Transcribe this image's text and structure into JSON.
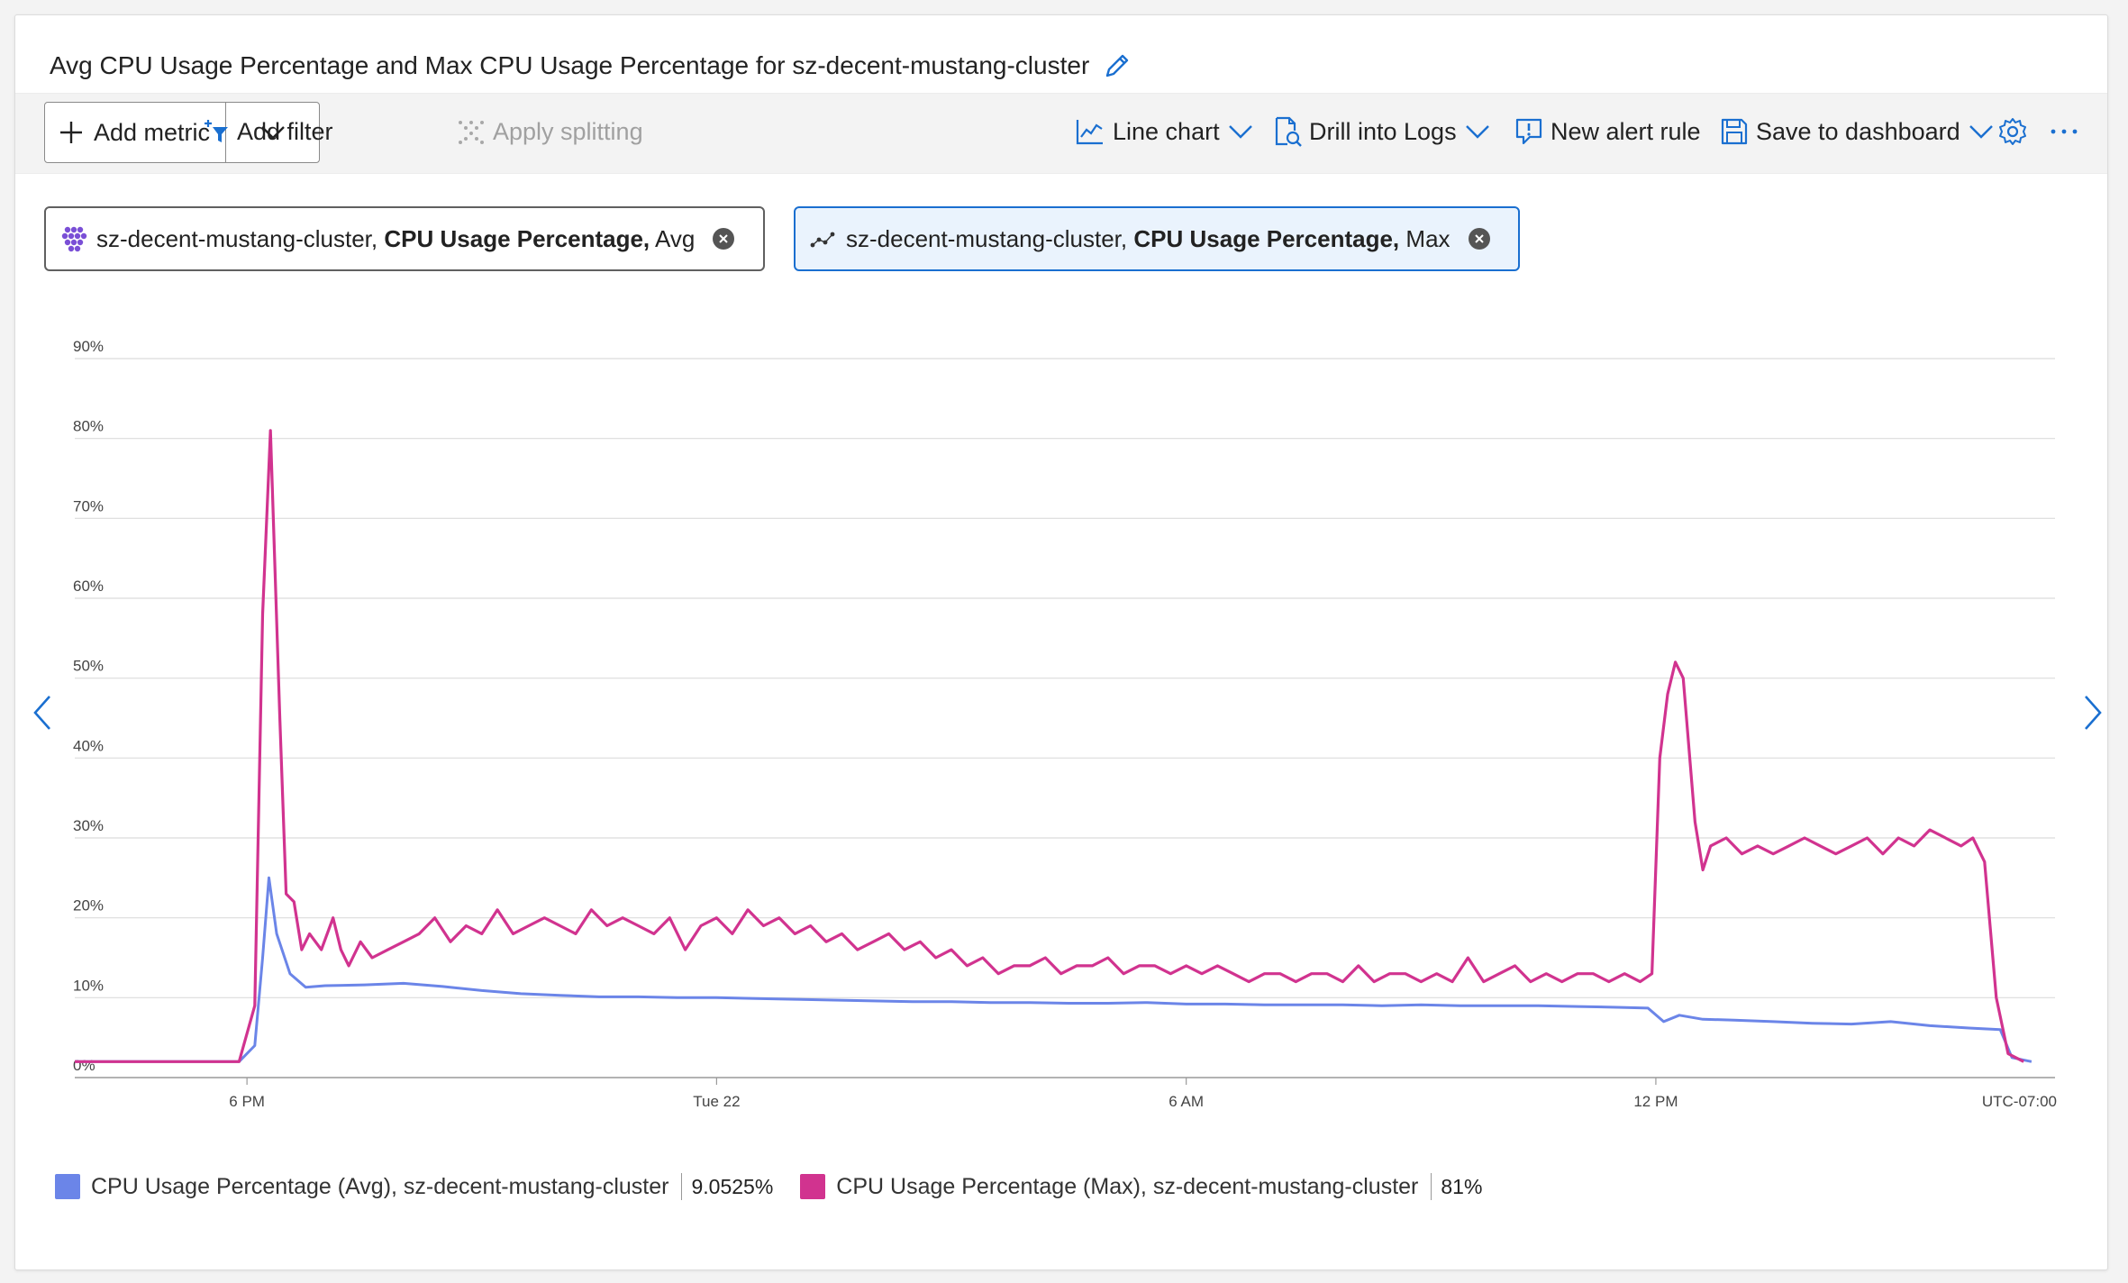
{
  "title": "Avg CPU Usage Percentage and Max CPU Usage Percentage for sz-decent-mustang-cluster",
  "icons": {
    "edit": "pencil-icon",
    "add": "plus-icon",
    "filter": "filter-plus-icon",
    "splitting": "splitting-icon",
    "line_chart": "line-chart-icon",
    "logs": "logs-icon",
    "alert": "alert-icon",
    "save": "save-icon",
    "settings": "gear-icon",
    "more": "ellipsis-icon"
  },
  "toolbar": {
    "add_metric": "Add metric",
    "add_filter": "Add filter",
    "apply_splitting": "Apply splitting",
    "line_chart": "Line chart",
    "drill_into_logs": "Drill into Logs",
    "new_alert_rule": "New alert rule",
    "save_to_dashboard": "Save to dashboard"
  },
  "metric_pills": [
    {
      "resource": "sz-decent-mustang-cluster,",
      "metric": "CPU Usage Percentage,",
      "aggregation": "Avg"
    },
    {
      "resource": "sz-decent-mustang-cluster,",
      "metric": "CPU Usage Percentage,",
      "aggregation": "Max"
    }
  ],
  "legend": [
    {
      "label": "CPU Usage Percentage (Avg), sz-decent-mustang-cluster",
      "value": "9.0525%",
      "color": "#6b85e8"
    },
    {
      "label": "CPU Usage Percentage (Max), sz-decent-mustang-cluster",
      "value": "81%",
      "color": "#d1338f"
    }
  ],
  "chart_data": {
    "type": "line",
    "timezone_label": "UTC-07:00",
    "x_ticks": [
      {
        "label": "6 PM",
        "hour": 18
      },
      {
        "label": "Tue 22",
        "hour": 24
      },
      {
        "label": "6 AM",
        "hour": 30
      },
      {
        "label": "12 PM",
        "hour": 36
      }
    ],
    "xlim_hours": [
      15.8,
      41.1
    ],
    "y_ticks": [
      "0%",
      "10%",
      "20%",
      "30%",
      "40%",
      "50%",
      "60%",
      "70%",
      "80%",
      "90%"
    ],
    "ylim": [
      0,
      90
    ],
    "grid": true,
    "series": [
      {
        "name": "CPU Usage Percentage (Avg), sz-decent-mustang-cluster",
        "color": "#6b85e8",
        "points": [
          [
            15.8,
            2
          ],
          [
            16.5,
            2
          ],
          [
            17.0,
            2
          ],
          [
            17.5,
            2
          ],
          [
            17.9,
            2
          ],
          [
            18.1,
            4
          ],
          [
            18.2,
            15
          ],
          [
            18.28,
            25
          ],
          [
            18.38,
            18
          ],
          [
            18.55,
            13
          ],
          [
            18.75,
            11.3
          ],
          [
            19.0,
            11.5
          ],
          [
            19.5,
            11.6
          ],
          [
            20.0,
            11.8
          ],
          [
            20.5,
            11.4
          ],
          [
            21.0,
            10.9
          ],
          [
            21.5,
            10.5
          ],
          [
            22.0,
            10.3
          ],
          [
            22.5,
            10.1
          ],
          [
            23.0,
            10.1
          ],
          [
            23.5,
            10.0
          ],
          [
            24.0,
            10.0
          ],
          [
            24.5,
            9.9
          ],
          [
            25.0,
            9.8
          ],
          [
            25.5,
            9.7
          ],
          [
            26.0,
            9.6
          ],
          [
            26.5,
            9.5
          ],
          [
            27.0,
            9.5
          ],
          [
            27.5,
            9.4
          ],
          [
            28.0,
            9.4
          ],
          [
            28.5,
            9.3
          ],
          [
            29.0,
            9.3
          ],
          [
            29.5,
            9.4
          ],
          [
            30.0,
            9.2
          ],
          [
            30.5,
            9.2
          ],
          [
            31.0,
            9.1
          ],
          [
            31.5,
            9.1
          ],
          [
            32.0,
            9.1
          ],
          [
            32.5,
            9.0
          ],
          [
            33.0,
            9.1
          ],
          [
            33.5,
            9.0
          ],
          [
            34.0,
            9.0
          ],
          [
            34.5,
            9.0
          ],
          [
            35.0,
            8.9
          ],
          [
            35.5,
            8.8
          ],
          [
            35.9,
            8.7
          ],
          [
            36.1,
            7.0
          ],
          [
            36.3,
            7.8
          ],
          [
            36.6,
            7.3
          ],
          [
            37.0,
            7.2
          ],
          [
            37.5,
            7.0
          ],
          [
            38.0,
            6.8
          ],
          [
            38.5,
            6.7
          ],
          [
            39.0,
            7.0
          ],
          [
            39.5,
            6.5
          ],
          [
            40.0,
            6.2
          ],
          [
            40.4,
            6.0
          ],
          [
            40.55,
            2.5
          ],
          [
            40.8,
            2
          ]
        ]
      },
      {
        "name": "CPU Usage Percentage (Max), sz-decent-mustang-cluster",
        "color": "#d1338f",
        "points": [
          [
            15.8,
            2
          ],
          [
            16.5,
            2
          ],
          [
            17.0,
            2
          ],
          [
            17.5,
            2
          ],
          [
            17.9,
            2
          ],
          [
            18.1,
            9
          ],
          [
            18.2,
            58
          ],
          [
            18.3,
            81
          ],
          [
            18.42,
            45
          ],
          [
            18.5,
            23
          ],
          [
            18.6,
            22
          ],
          [
            18.7,
            16
          ],
          [
            18.8,
            18
          ],
          [
            18.95,
            16
          ],
          [
            19.1,
            20
          ],
          [
            19.2,
            16
          ],
          [
            19.3,
            14
          ],
          [
            19.45,
            17
          ],
          [
            19.6,
            15
          ],
          [
            19.8,
            16
          ],
          [
            20.0,
            17
          ],
          [
            20.2,
            18
          ],
          [
            20.4,
            20
          ],
          [
            20.6,
            17
          ],
          [
            20.8,
            19
          ],
          [
            21.0,
            18
          ],
          [
            21.2,
            21
          ],
          [
            21.4,
            18
          ],
          [
            21.6,
            19
          ],
          [
            21.8,
            20
          ],
          [
            22.0,
            19
          ],
          [
            22.2,
            18
          ],
          [
            22.4,
            21
          ],
          [
            22.6,
            19
          ],
          [
            22.8,
            20
          ],
          [
            23.0,
            19
          ],
          [
            23.2,
            18
          ],
          [
            23.4,
            20
          ],
          [
            23.6,
            16
          ],
          [
            23.8,
            19
          ],
          [
            24.0,
            20
          ],
          [
            24.2,
            18
          ],
          [
            24.4,
            21
          ],
          [
            24.6,
            19
          ],
          [
            24.8,
            20
          ],
          [
            25.0,
            18
          ],
          [
            25.2,
            19
          ],
          [
            25.4,
            17
          ],
          [
            25.6,
            18
          ],
          [
            25.8,
            16
          ],
          [
            26.0,
            17
          ],
          [
            26.2,
            18
          ],
          [
            26.4,
            16
          ],
          [
            26.6,
            17
          ],
          [
            26.8,
            15
          ],
          [
            27.0,
            16
          ],
          [
            27.2,
            14
          ],
          [
            27.4,
            15
          ],
          [
            27.6,
            13
          ],
          [
            27.8,
            14
          ],
          [
            28.0,
            14
          ],
          [
            28.2,
            15
          ],
          [
            28.4,
            13
          ],
          [
            28.6,
            14
          ],
          [
            28.8,
            14
          ],
          [
            29.0,
            15
          ],
          [
            29.2,
            13
          ],
          [
            29.4,
            14
          ],
          [
            29.6,
            14
          ],
          [
            29.8,
            13
          ],
          [
            30.0,
            14
          ],
          [
            30.2,
            13
          ],
          [
            30.4,
            14
          ],
          [
            30.6,
            13
          ],
          [
            30.8,
            12
          ],
          [
            31.0,
            13
          ],
          [
            31.2,
            13
          ],
          [
            31.4,
            12
          ],
          [
            31.6,
            13
          ],
          [
            31.8,
            13
          ],
          [
            32.0,
            12
          ],
          [
            32.2,
            14
          ],
          [
            32.4,
            12
          ],
          [
            32.6,
            13
          ],
          [
            32.8,
            13
          ],
          [
            33.0,
            12
          ],
          [
            33.2,
            13
          ],
          [
            33.4,
            12
          ],
          [
            33.6,
            15
          ],
          [
            33.8,
            12
          ],
          [
            34.0,
            13
          ],
          [
            34.2,
            14
          ],
          [
            34.4,
            12
          ],
          [
            34.6,
            13
          ],
          [
            34.8,
            12
          ],
          [
            35.0,
            13
          ],
          [
            35.2,
            13
          ],
          [
            35.4,
            12
          ],
          [
            35.6,
            13
          ],
          [
            35.8,
            12
          ],
          [
            35.95,
            13
          ],
          [
            36.05,
            40
          ],
          [
            36.15,
            48
          ],
          [
            36.25,
            52
          ],
          [
            36.35,
            50
          ],
          [
            36.5,
            32
          ],
          [
            36.6,
            26
          ],
          [
            36.7,
            29
          ],
          [
            36.9,
            30
          ],
          [
            37.1,
            28
          ],
          [
            37.3,
            29
          ],
          [
            37.5,
            28
          ],
          [
            37.7,
            29
          ],
          [
            37.9,
            30
          ],
          [
            38.1,
            29
          ],
          [
            38.3,
            28
          ],
          [
            38.5,
            29
          ],
          [
            38.7,
            30
          ],
          [
            38.9,
            28
          ],
          [
            39.1,
            30
          ],
          [
            39.3,
            29
          ],
          [
            39.5,
            31
          ],
          [
            39.7,
            30
          ],
          [
            39.9,
            29
          ],
          [
            40.05,
            30
          ],
          [
            40.2,
            27
          ],
          [
            40.35,
            10
          ],
          [
            40.5,
            3
          ],
          [
            40.7,
            2
          ]
        ]
      }
    ]
  }
}
